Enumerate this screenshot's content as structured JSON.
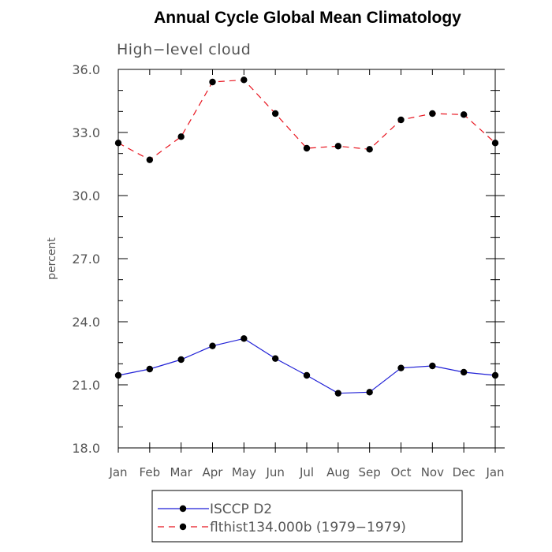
{
  "chart_data": {
    "type": "line",
    "title": "Annual Cycle Global Mean Climatology",
    "subtitle": "High−level cloud",
    "ylabel": "percent",
    "xlabel": "",
    "categories": [
      "Jan",
      "Feb",
      "Mar",
      "Apr",
      "May",
      "Jun",
      "Jul",
      "Aug",
      "Sep",
      "Oct",
      "Nov",
      "Dec",
      "Jan"
    ],
    "ylim": [
      18.0,
      36.0
    ],
    "yticks": [
      "18.0",
      "21.0",
      "24.0",
      "27.0",
      "30.0",
      "33.0",
      "36.0"
    ],
    "series": [
      {
        "name": "ISCCP D2",
        "color": "#1f1fd6",
        "line_style": "solid",
        "values": [
          21.45,
          21.75,
          22.2,
          22.85,
          23.2,
          22.25,
          21.45,
          20.6,
          20.65,
          21.8,
          21.9,
          21.6,
          21.45
        ]
      },
      {
        "name": "flthist134.000b (1979−1979)",
        "color": "#e8141e",
        "line_style": "dashed",
        "values": [
          32.5,
          31.7,
          32.8,
          35.4,
          35.5,
          33.9,
          32.25,
          32.35,
          32.2,
          33.6,
          33.9,
          33.85,
          32.5
        ]
      }
    ],
    "grid": false,
    "legend_position": "bottom-center"
  }
}
